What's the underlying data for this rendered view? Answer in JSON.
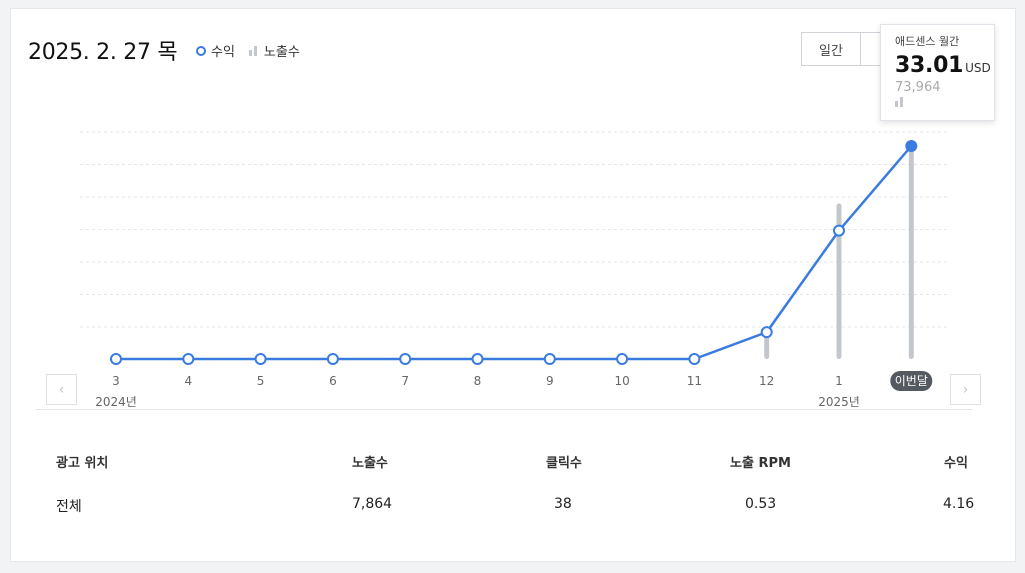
{
  "header": {
    "date": "2025. 2. 27 목",
    "legend_revenue": "수익",
    "legend_impressions": "노출수"
  },
  "tabs": [
    {
      "label": "일간"
    },
    {
      "label": ""
    }
  ],
  "tooltip": {
    "title": "애드센스 월간",
    "value": "33.01",
    "unit": "USD",
    "impressions": "73,964"
  },
  "colors": {
    "revenue_line": "#3a7be0",
    "impression_bar": "#c3c7cc",
    "current_badge": "#555a60"
  },
  "icons": {
    "prev": "chevron-left-icon",
    "next": "chevron-right-icon"
  },
  "chart_data": {
    "type": "line",
    "categories": [
      "3",
      "4",
      "5",
      "6",
      "7",
      "8",
      "9",
      "10",
      "11",
      "12",
      "1",
      "이번달"
    ],
    "year_labels": [
      {
        "index": 0,
        "label": "2024년"
      },
      {
        "index": 10,
        "label": "2025년"
      }
    ],
    "current_category": "이번달",
    "series": [
      {
        "name": "수익",
        "values": [
          0,
          0,
          0,
          0,
          0,
          0,
          0,
          0,
          0,
          4.16,
          19.9,
          33.01
        ]
      },
      {
        "name": "노출수",
        "values": [
          0,
          0,
          0,
          0,
          0,
          0,
          0,
          0,
          0,
          7864,
          54000,
          73964
        ]
      }
    ],
    "ylim_revenue": [
      0,
      35
    ],
    "ylim_impressions": [
      0,
      73964
    ],
    "grid": true,
    "legend_placement": "top-left"
  },
  "table": {
    "headers": [
      "광고 위치",
      "노출수",
      "클릭수",
      "노출 RPM",
      "수익"
    ],
    "rows": [
      [
        "전체",
        "7,864",
        "38",
        "0.53",
        "4.16"
      ]
    ]
  }
}
